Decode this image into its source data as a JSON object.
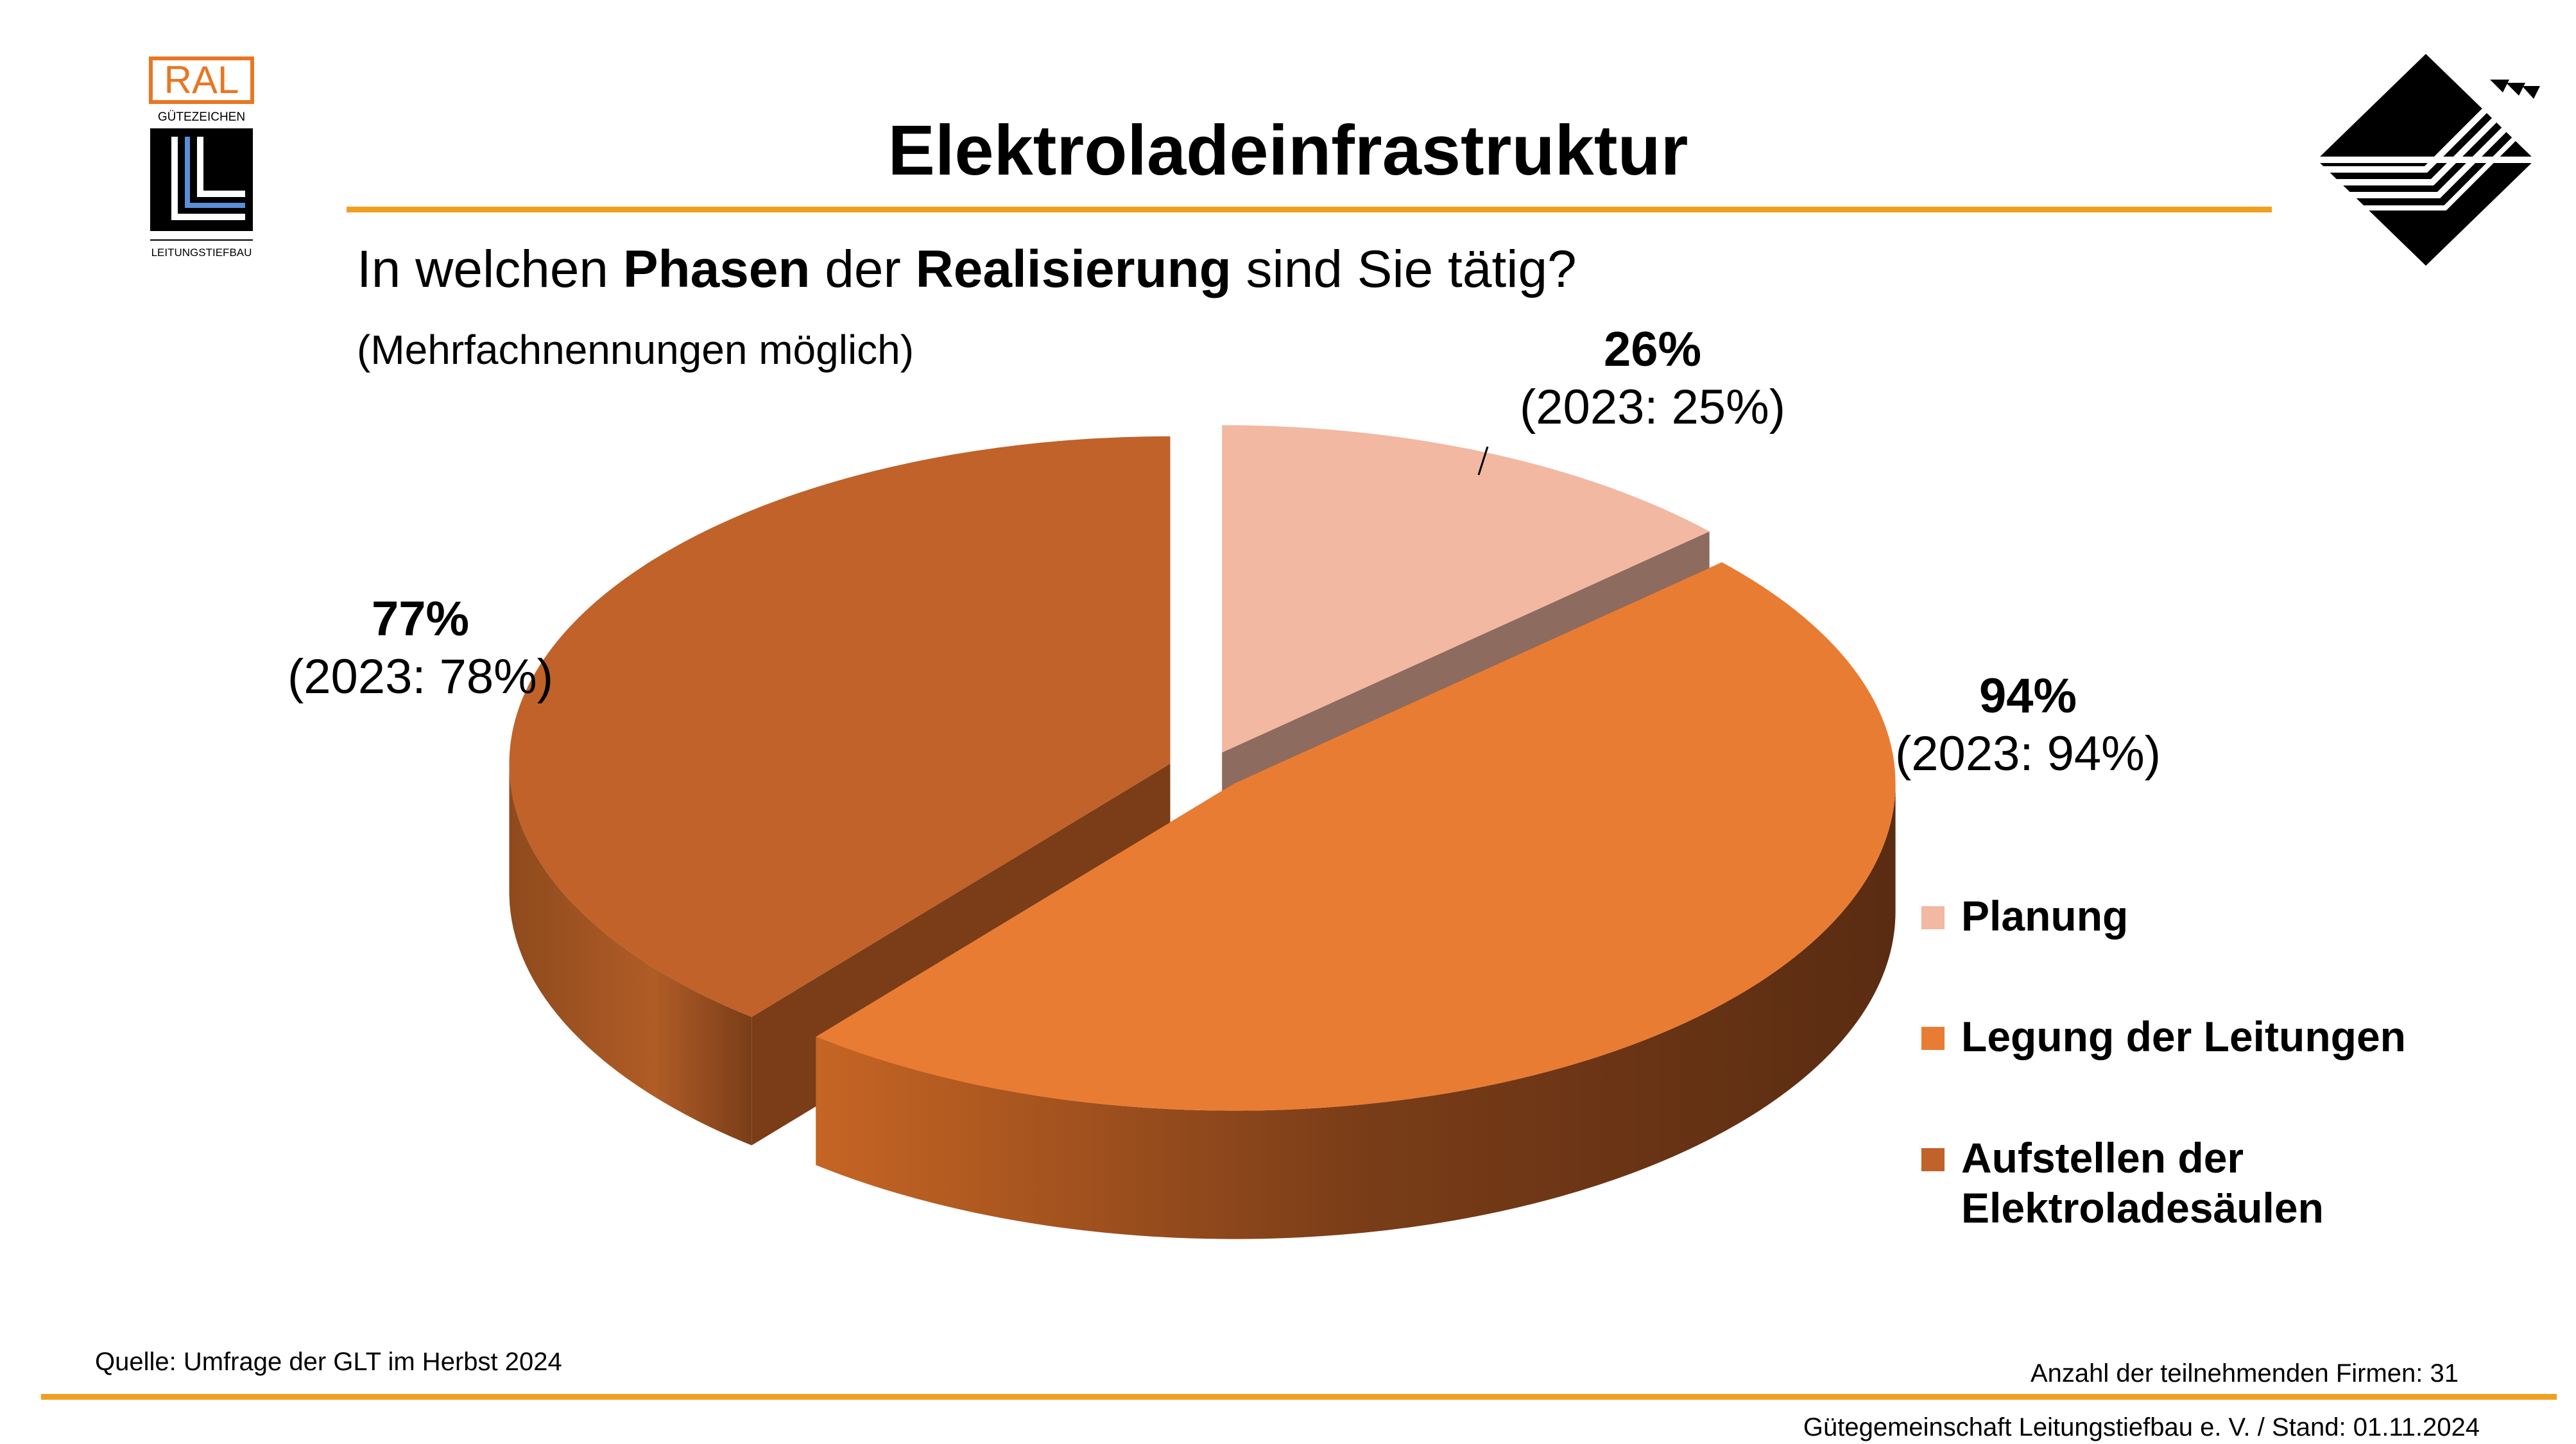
{
  "title": "Elektroladeinfrastruktur",
  "question": {
    "part1": "In welchen ",
    "bold1": "Phasen",
    "part2": " der ",
    "bold2": "Realisierung",
    "part3": " sind Sie tätig?"
  },
  "note": "(Mehrfachnennungen möglich)",
  "logo_ral": {
    "brand": "RAL",
    "subtitle": "GÜTEZEICHEN",
    "caption": "LEITUNGSTIEFBAU"
  },
  "colors": {
    "accent_rule": "#f0a020",
    "planung": "#f2b8a2",
    "legung": "#e97c33",
    "aufstellen": "#c0622a"
  },
  "chart_data": {
    "type": "pie",
    "style": "3d-exploded",
    "categories": [
      "Planung",
      "Legung der Leitungen",
      "Aufstellen der Elektroladesäulen"
    ],
    "values": [
      26,
      94,
      77
    ],
    "values_unit": "%",
    "previous_year_values": [
      25,
      94,
      78
    ],
    "labels": [
      {
        "pct": "26%",
        "prev": "(2023: 25%)"
      },
      {
        "pct": "94%",
        "prev": "(2023: 94%)"
      },
      {
        "pct": "77%",
        "prev": "(2023: 78%)"
      }
    ],
    "legend": {
      "placement": "right",
      "items": [
        {
          "label": "Planung"
        },
        {
          "label": "Legung der Leitungen"
        },
        {
          "label": "Aufstellen der",
          "label2": "Elektroladesäulen"
        }
      ]
    }
  },
  "footer": {
    "source": "Quelle: Umfrage der GLT im Herbst 2024",
    "participants": "Anzahl der teilnehmenden Firmen: 31",
    "org": "Gütegemeinschaft Leitungstiefbau e. V. / Stand: 01.11.2024"
  }
}
